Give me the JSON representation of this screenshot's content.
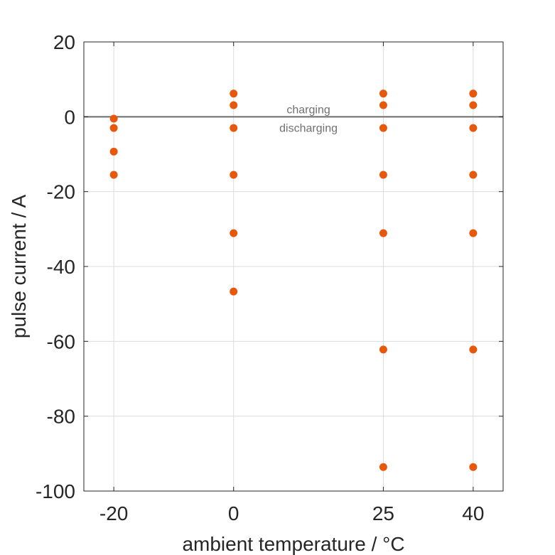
{
  "chart_data": {
    "type": "scatter",
    "xlabel": "ambient temperature / °C",
    "ylabel": "pulse current / A",
    "xticks": [
      -20,
      0,
      25,
      40
    ],
    "yticks": [
      20,
      0,
      -20,
      -40,
      -60,
      -80,
      -100
    ],
    "xlim": [
      -25,
      45
    ],
    "ylim": [
      -100,
      20
    ],
    "grid": true,
    "reference_line_y": 0,
    "annotations": {
      "above": "charging",
      "below": "discharging"
    },
    "marker_color": "#E8580C",
    "series": [
      {
        "x": [
          -20,
          -20,
          -20,
          -20,
          0,
          0,
          0,
          0,
          0,
          0,
          25,
          25,
          25,
          25,
          25,
          25,
          25,
          40,
          40,
          40,
          40,
          40,
          40,
          40
        ],
        "y": [
          -0.5,
          -3,
          -9.3,
          -15.5,
          6.2,
          3.1,
          -3,
          -15.5,
          -31.1,
          -46.7,
          6.2,
          3.1,
          -3,
          -15.5,
          -31.1,
          -62.2,
          -93.6,
          6.2,
          3.1,
          -3,
          -15.5,
          -31.1,
          -62.2,
          -93.6
        ]
      }
    ]
  }
}
